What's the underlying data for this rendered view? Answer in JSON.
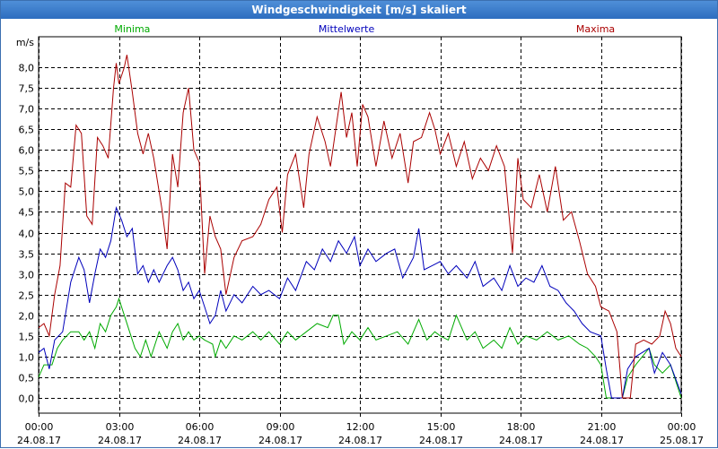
{
  "window": {
    "title": "Windgeschwindigkeit [m/s] skaliert"
  },
  "chart_data": {
    "type": "line",
    "title": "Windgeschwindigkeit [m/s] skaliert",
    "ylabel": "m/s",
    "ylim": [
      -0.15,
      8.7
    ],
    "yticks": [
      0.0,
      0.5,
      1.0,
      1.5,
      2.0,
      2.5,
      3.0,
      3.5,
      4.0,
      4.5,
      5.0,
      5.5,
      6.0,
      6.5,
      7.0,
      7.5,
      8.0
    ],
    "ytick_labels": [
      "0,0",
      "0,5",
      "1,0",
      "1,5",
      "2,0",
      "2,5",
      "3,0",
      "3,5",
      "4,0",
      "4,5",
      "5,0",
      "5,5",
      "6,0",
      "6,5",
      "7,0",
      "7,5",
      "8,0"
    ],
    "xlim_hours": [
      0,
      24
    ],
    "xticks": [
      {
        "hour": 0,
        "time": "00:00",
        "date": "24.08.17"
      },
      {
        "hour": 3,
        "time": "03:00",
        "date": "24.08.17"
      },
      {
        "hour": 6,
        "time": "06:00",
        "date": "24.08.17"
      },
      {
        "hour": 9,
        "time": "09:00",
        "date": "24.08.17"
      },
      {
        "hour": 12,
        "time": "12:00",
        "date": "24.08.17"
      },
      {
        "hour": 15,
        "time": "15:00",
        "date": "24.08.17"
      },
      {
        "hour": 18,
        "time": "18:00",
        "date": "24.08.17"
      },
      {
        "hour": 21,
        "time": "21:00",
        "date": "24.08.17"
      },
      {
        "hour": 24,
        "time": "00:00",
        "date": "25.08.17"
      }
    ],
    "grid": true,
    "series": [
      {
        "name": "Minima",
        "color": "#00aa00",
        "legend_hour": 3.5,
        "points": [
          [
            0,
            0.5
          ],
          [
            0.2,
            0.8
          ],
          [
            0.5,
            0.8
          ],
          [
            0.7,
            1.2
          ],
          [
            0.9,
            1.4
          ],
          [
            1.2,
            1.6
          ],
          [
            1.5,
            1.6
          ],
          [
            1.7,
            1.4
          ],
          [
            1.9,
            1.6
          ],
          [
            2.1,
            1.2
          ],
          [
            2.3,
            1.8
          ],
          [
            2.5,
            1.6
          ],
          [
            2.7,
            2.0
          ],
          [
            2.9,
            2.2
          ],
          [
            3.0,
            2.4
          ],
          [
            3.2,
            2.0
          ],
          [
            3.4,
            1.6
          ],
          [
            3.6,
            1.2
          ],
          [
            3.8,
            1.0
          ],
          [
            4.0,
            1.4
          ],
          [
            4.2,
            1.0
          ],
          [
            4.5,
            1.6
          ],
          [
            4.8,
            1.2
          ],
          [
            5.0,
            1.6
          ],
          [
            5.2,
            1.8
          ],
          [
            5.4,
            1.4
          ],
          [
            5.6,
            1.6
          ],
          [
            5.8,
            1.4
          ],
          [
            6.0,
            1.5
          ],
          [
            6.2,
            1.4
          ],
          [
            6.5,
            1.3
          ],
          [
            6.6,
            1.0
          ],
          [
            6.8,
            1.4
          ],
          [
            7.0,
            1.2
          ],
          [
            7.3,
            1.5
          ],
          [
            7.6,
            1.4
          ],
          [
            8.0,
            1.6
          ],
          [
            8.3,
            1.4
          ],
          [
            8.6,
            1.6
          ],
          [
            9.0,
            1.3
          ],
          [
            9.3,
            1.6
          ],
          [
            9.6,
            1.4
          ],
          [
            10.0,
            1.6
          ],
          [
            10.4,
            1.8
          ],
          [
            10.8,
            1.7
          ],
          [
            11.0,
            2.0
          ],
          [
            11.2,
            2.0
          ],
          [
            11.4,
            1.3
          ],
          [
            11.7,
            1.6
          ],
          [
            12.0,
            1.4
          ],
          [
            12.3,
            1.7
          ],
          [
            12.6,
            1.4
          ],
          [
            13.0,
            1.5
          ],
          [
            13.4,
            1.6
          ],
          [
            13.8,
            1.3
          ],
          [
            14.2,
            1.9
          ],
          [
            14.5,
            1.4
          ],
          [
            14.8,
            1.6
          ],
          [
            15.0,
            1.5
          ],
          [
            15.3,
            1.4
          ],
          [
            15.6,
            2.0
          ],
          [
            16.0,
            1.4
          ],
          [
            16.3,
            1.6
          ],
          [
            16.6,
            1.2
          ],
          [
            17.0,
            1.4
          ],
          [
            17.3,
            1.2
          ],
          [
            17.6,
            1.7
          ],
          [
            17.9,
            1.3
          ],
          [
            18.2,
            1.5
          ],
          [
            18.6,
            1.4
          ],
          [
            19.0,
            1.6
          ],
          [
            19.4,
            1.4
          ],
          [
            19.8,
            1.5
          ],
          [
            20.2,
            1.3
          ],
          [
            20.5,
            1.2
          ],
          [
            20.8,
            1.0
          ],
          [
            21.0,
            0.8
          ],
          [
            21.2,
            0.0
          ],
          [
            21.8,
            0.0
          ],
          [
            22.0,
            0.5
          ],
          [
            22.3,
            0.8
          ],
          [
            22.8,
            1.2
          ],
          [
            23.0,
            0.8
          ],
          [
            23.3,
            0.6
          ],
          [
            23.6,
            0.8
          ],
          [
            24.0,
            0.0
          ]
        ]
      },
      {
        "name": "Mittelwerte",
        "color": "#0000bb",
        "legend_hour": 11.5,
        "points": [
          [
            0,
            1.1
          ],
          [
            0.2,
            1.2
          ],
          [
            0.4,
            0.7
          ],
          [
            0.6,
            1.4
          ],
          [
            0.9,
            1.6
          ],
          [
            1.2,
            2.8
          ],
          [
            1.5,
            3.4
          ],
          [
            1.7,
            3.1
          ],
          [
            1.9,
            2.3
          ],
          [
            2.1,
            3.0
          ],
          [
            2.3,
            3.6
          ],
          [
            2.5,
            3.4
          ],
          [
            2.7,
            3.8
          ],
          [
            2.9,
            4.6
          ],
          [
            3.1,
            4.3
          ],
          [
            3.3,
            3.9
          ],
          [
            3.5,
            4.1
          ],
          [
            3.7,
            3.0
          ],
          [
            3.9,
            3.2
          ],
          [
            4.1,
            2.8
          ],
          [
            4.3,
            3.1
          ],
          [
            4.5,
            2.8
          ],
          [
            4.8,
            3.2
          ],
          [
            5.0,
            3.4
          ],
          [
            5.2,
            3.1
          ],
          [
            5.4,
            2.6
          ],
          [
            5.6,
            2.8
          ],
          [
            5.8,
            2.4
          ],
          [
            6.0,
            2.6
          ],
          [
            6.2,
            2.2
          ],
          [
            6.4,
            1.8
          ],
          [
            6.6,
            2.0
          ],
          [
            6.8,
            2.6
          ],
          [
            7.0,
            2.1
          ],
          [
            7.3,
            2.5
          ],
          [
            7.6,
            2.3
          ],
          [
            8.0,
            2.7
          ],
          [
            8.3,
            2.5
          ],
          [
            8.6,
            2.6
          ],
          [
            9.0,
            2.4
          ],
          [
            9.3,
            2.9
          ],
          [
            9.6,
            2.6
          ],
          [
            10.0,
            3.3
          ],
          [
            10.3,
            3.1
          ],
          [
            10.6,
            3.6
          ],
          [
            10.9,
            3.3
          ],
          [
            11.2,
            3.8
          ],
          [
            11.5,
            3.5
          ],
          [
            11.8,
            3.9
          ],
          [
            12.0,
            3.2
          ],
          [
            12.3,
            3.6
          ],
          [
            12.6,
            3.3
          ],
          [
            13.0,
            3.5
          ],
          [
            13.3,
            3.6
          ],
          [
            13.6,
            2.9
          ],
          [
            14.0,
            3.4
          ],
          [
            14.2,
            4.1
          ],
          [
            14.4,
            3.1
          ],
          [
            14.7,
            3.2
          ],
          [
            15.0,
            3.3
          ],
          [
            15.3,
            3.0
          ],
          [
            15.6,
            3.2
          ],
          [
            16.0,
            2.9
          ],
          [
            16.3,
            3.3
          ],
          [
            16.6,
            2.7
          ],
          [
            17.0,
            2.9
          ],
          [
            17.3,
            2.6
          ],
          [
            17.6,
            3.2
          ],
          [
            17.9,
            2.7
          ],
          [
            18.2,
            2.9
          ],
          [
            18.5,
            2.8
          ],
          [
            18.8,
            3.2
          ],
          [
            19.1,
            2.7
          ],
          [
            19.4,
            2.6
          ],
          [
            19.7,
            2.3
          ],
          [
            20.0,
            2.1
          ],
          [
            20.3,
            1.8
          ],
          [
            20.6,
            1.6
          ],
          [
            21.0,
            1.5
          ],
          [
            21.2,
            0.7
          ],
          [
            21.4,
            0.0
          ],
          [
            21.8,
            0.0
          ],
          [
            22.0,
            0.7
          ],
          [
            22.3,
            1.0
          ],
          [
            22.8,
            1.2
          ],
          [
            23.0,
            0.6
          ],
          [
            23.3,
            1.1
          ],
          [
            23.6,
            0.8
          ],
          [
            24.0,
            0.1
          ]
        ]
      },
      {
        "name": "Maxima",
        "color": "#aa0000",
        "legend_hour": 20.8,
        "points": [
          [
            0,
            1.7
          ],
          [
            0.2,
            1.8
          ],
          [
            0.4,
            1.5
          ],
          [
            0.6,
            2.5
          ],
          [
            0.8,
            3.2
          ],
          [
            1.0,
            5.2
          ],
          [
            1.2,
            5.1
          ],
          [
            1.4,
            6.6
          ],
          [
            1.6,
            6.4
          ],
          [
            1.8,
            4.4
          ],
          [
            2.0,
            4.2
          ],
          [
            2.2,
            6.3
          ],
          [
            2.4,
            6.1
          ],
          [
            2.6,
            5.8
          ],
          [
            2.8,
            7.5
          ],
          [
            2.9,
            8.1
          ],
          [
            3.0,
            7.6
          ],
          [
            3.2,
            8.0
          ],
          [
            3.3,
            8.3
          ],
          [
            3.5,
            7.4
          ],
          [
            3.7,
            6.4
          ],
          [
            3.9,
            5.9
          ],
          [
            4.1,
            6.4
          ],
          [
            4.3,
            5.8
          ],
          [
            4.6,
            4.6
          ],
          [
            4.8,
            3.6
          ],
          [
            5.0,
            5.9
          ],
          [
            5.2,
            5.1
          ],
          [
            5.4,
            6.9
          ],
          [
            5.6,
            7.5
          ],
          [
            5.8,
            6.0
          ],
          [
            6.0,
            5.7
          ],
          [
            6.2,
            3.0
          ],
          [
            6.4,
            4.4
          ],
          [
            6.6,
            3.9
          ],
          [
            6.8,
            3.6
          ],
          [
            7.0,
            2.5
          ],
          [
            7.3,
            3.4
          ],
          [
            7.6,
            3.8
          ],
          [
            8.0,
            3.9
          ],
          [
            8.3,
            4.2
          ],
          [
            8.6,
            4.8
          ],
          [
            8.9,
            5.1
          ],
          [
            9.1,
            4.0
          ],
          [
            9.3,
            5.4
          ],
          [
            9.6,
            5.9
          ],
          [
            9.9,
            4.6
          ],
          [
            10.1,
            5.9
          ],
          [
            10.4,
            6.8
          ],
          [
            10.7,
            6.2
          ],
          [
            10.9,
            5.6
          ],
          [
            11.1,
            6.5
          ],
          [
            11.3,
            7.4
          ],
          [
            11.5,
            6.3
          ],
          [
            11.7,
            6.9
          ],
          [
            11.9,
            5.6
          ],
          [
            12.1,
            7.1
          ],
          [
            12.3,
            6.8
          ],
          [
            12.6,
            5.6
          ],
          [
            12.9,
            6.7
          ],
          [
            13.2,
            5.8
          ],
          [
            13.5,
            6.4
          ],
          [
            13.8,
            5.2
          ],
          [
            14.0,
            6.2
          ],
          [
            14.3,
            6.3
          ],
          [
            14.6,
            6.9
          ],
          [
            14.8,
            6.5
          ],
          [
            15.0,
            5.9
          ],
          [
            15.3,
            6.4
          ],
          [
            15.6,
            5.6
          ],
          [
            15.9,
            6.2
          ],
          [
            16.2,
            5.3
          ],
          [
            16.5,
            5.8
          ],
          [
            16.8,
            5.5
          ],
          [
            17.1,
            6.1
          ],
          [
            17.4,
            5.6
          ],
          [
            17.7,
            3.5
          ],
          [
            17.9,
            5.8
          ],
          [
            18.1,
            4.8
          ],
          [
            18.4,
            4.6
          ],
          [
            18.7,
            5.4
          ],
          [
            19.0,
            4.5
          ],
          [
            19.3,
            5.6
          ],
          [
            19.6,
            4.3
          ],
          [
            19.9,
            4.5
          ],
          [
            20.2,
            3.8
          ],
          [
            20.5,
            3.0
          ],
          [
            20.8,
            2.7
          ],
          [
            21.0,
            2.2
          ],
          [
            21.3,
            2.1
          ],
          [
            21.6,
            1.6
          ],
          [
            21.8,
            0.0
          ],
          [
            22.1,
            0.0
          ],
          [
            22.3,
            1.3
          ],
          [
            22.6,
            1.4
          ],
          [
            22.9,
            1.3
          ],
          [
            23.2,
            1.5
          ],
          [
            23.4,
            2.1
          ],
          [
            23.6,
            1.8
          ],
          [
            23.8,
            1.2
          ],
          [
            24.0,
            1.0
          ]
        ]
      }
    ]
  }
}
